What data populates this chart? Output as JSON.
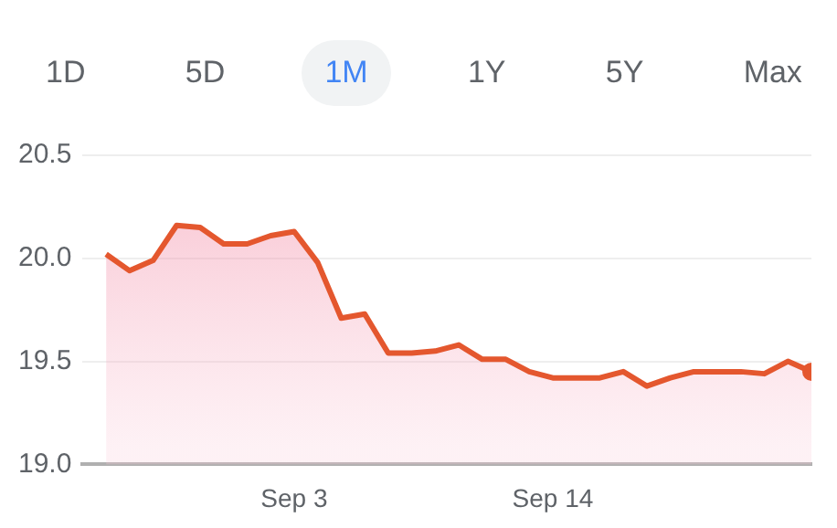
{
  "chart_data": {
    "type": "area",
    "x": [
      "--08-26",
      "--08-27",
      "--08-28",
      "--08-29",
      "--08-30",
      "--08-31",
      "--09-01",
      "--09-02",
      "--09-03",
      "--09-04",
      "--09-05",
      "--09-06",
      "--09-07",
      "--09-08",
      "--09-09",
      "--09-10",
      "--09-11",
      "--09-12",
      "--09-13",
      "--09-14",
      "--09-15",
      "--09-16",
      "--09-17",
      "--09-18",
      "--09-19",
      "--09-20",
      "--09-21",
      "--09-22",
      "--09-23",
      "--09-24",
      "--09-25"
    ],
    "series": [
      {
        "color": "#e4572e",
        "values": [
          20.02,
          19.94,
          19.99,
          20.16,
          20.15,
          20.07,
          20.07,
          20.11,
          20.13,
          19.98,
          19.71,
          19.73,
          19.54,
          19.54,
          19.55,
          19.58,
          19.51,
          19.51,
          19.45,
          19.42,
          19.42,
          19.42,
          19.45,
          19.38,
          19.42,
          19.45,
          19.45,
          19.45,
          19.44,
          19.5,
          19.45
        ]
      }
    ],
    "ylim": [
      19.0,
      20.5
    ],
    "yticks": [
      {
        "value": 19.0,
        "label": "19.0"
      },
      {
        "value": 19.5,
        "label": "19.5"
      },
      {
        "value": 20.0,
        "label": "20.0"
      },
      {
        "value": 20.5,
        "label": "20.5"
      }
    ],
    "xlim": [
      "--08-25",
      "--09-25"
    ],
    "xticks": [
      {
        "value": "--09-03",
        "label": "Sep 3"
      },
      {
        "value": "--09-14",
        "label": "Sep 14"
      }
    ],
    "grid": "y",
    "annotations": [
      "1D",
      "5D",
      "1M",
      "1Y",
      "5Y",
      "Max"
    ]
  }
}
